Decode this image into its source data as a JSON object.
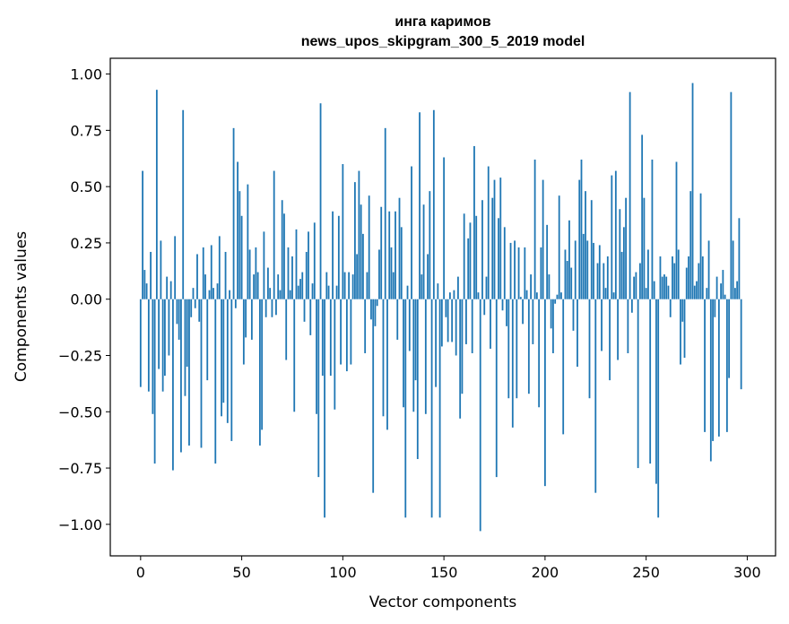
{
  "chart_data": {
    "type": "bar",
    "title": "инга каримов",
    "subtitle": "news_upos_skipgram_300_5_2019 model",
    "xlabel": "Vector components",
    "ylabel": "Components values",
    "xlim": [
      -15,
      314
    ],
    "ylim": [
      -1.14,
      1.07
    ],
    "xticks": [
      0,
      50,
      100,
      150,
      200,
      250,
      300
    ],
    "xtick_labels": [
      "0",
      "50",
      "100",
      "150",
      "200",
      "250",
      "300"
    ],
    "yticks": [
      1.0,
      0.75,
      0.5,
      0.25,
      0.0,
      -0.25,
      -0.5,
      -0.75,
      -1.0
    ],
    "ytick_labels": [
      "1.00",
      "0.75",
      "0.50",
      "0.25",
      "0.00",
      "−0.25",
      "−0.50",
      "−0.75",
      "−1.00"
    ],
    "grid": false,
    "bar_color": "#1f77b4",
    "values": [
      -0.39,
      0.57,
      0.13,
      0.07,
      -0.41,
      0.21,
      -0.51,
      -0.73,
      0.93,
      -0.31,
      0.26,
      -0.41,
      -0.34,
      0.1,
      -0.25,
      0.08,
      -0.76,
      0.28,
      -0.11,
      -0.18,
      -0.68,
      0.84,
      -0.43,
      -0.3,
      -0.65,
      -0.08,
      0.05,
      -0.04,
      0.2,
      -0.1,
      -0.66,
      0.23,
      0.11,
      -0.36,
      0.04,
      0.24,
      0.05,
      -0.73,
      0.07,
      0.28,
      -0.52,
      -0.46,
      0.21,
      -0.55,
      0.04,
      -0.63,
      0.76,
      -0.04,
      0.61,
      0.48,
      0.37,
      -0.29,
      -0.17,
      0.51,
      0.22,
      -0.18,
      0.11,
      0.23,
      0.12,
      -0.65,
      -0.58,
      0.3,
      -0.08,
      0.14,
      0.05,
      -0.08,
      0.57,
      -0.07,
      0.11,
      0.04,
      0.44,
      0.38,
      -0.27,
      0.23,
      0.04,
      0.19,
      -0.5,
      0.31,
      0.06,
      0.09,
      0.12,
      -0.1,
      0.21,
      0.3,
      -0.16,
      0.07,
      0.34,
      -0.51,
      -0.79,
      0.87,
      -0.34,
      -0.97,
      0.12,
      0.06,
      -0.34,
      0.39,
      -0.49,
      0.06,
      0.37,
      -0.29,
      0.6,
      0.12,
      -0.32,
      0.12,
      -0.29,
      0.11,
      0.52,
      0.2,
      0.57,
      0.42,
      0.29,
      -0.24,
      0.12,
      0.46,
      -0.09,
      -0.86,
      -0.12,
      -0.03,
      0.22,
      0.41,
      -0.52,
      0.76,
      -0.58,
      0.39,
      0.23,
      0.12,
      0.39,
      -0.18,
      0.45,
      0.32,
      -0.48,
      -0.97,
      0.06,
      -0.23,
      0.59,
      -0.5,
      -0.36,
      -0.71,
      0.83,
      0.11,
      0.42,
      -0.51,
      0.2,
      0.48,
      -0.97,
      0.84,
      -0.39,
      0.07,
      -0.97,
      -0.21,
      0.63,
      -0.08,
      -0.19,
      0.03,
      -0.19,
      0.04,
      -0.25,
      0.1,
      -0.53,
      -0.42,
      0.38,
      -0.2,
      0.27,
      0.34,
      -0.24,
      0.68,
      0.37,
      0.03,
      -1.03,
      0.44,
      -0.07,
      0.1,
      0.59,
      -0.22,
      0.45,
      0.53,
      -0.79,
      0.36,
      0.54,
      -0.05,
      0.32,
      -0.12,
      -0.44,
      0.25,
      -0.57,
      0.26,
      -0.44,
      0.23,
      0.01,
      -0.11,
      0.23,
      0.04,
      -0.42,
      0.11,
      -0.2,
      0.62,
      0.03,
      -0.48,
      0.23,
      0.53,
      -0.83,
      0.33,
      0.11,
      -0.13,
      -0.24,
      -0.02,
      0.02,
      0.46,
      0.03,
      -0.6,
      0.22,
      0.17,
      0.35,
      0.14,
      -0.14,
      0.26,
      -0.3,
      0.53,
      0.62,
      0.29,
      0.48,
      0.26,
      -0.44,
      0.44,
      0.25,
      -0.86,
      0.16,
      0.24,
      -0.23,
      0.16,
      0.05,
      0.19,
      -0.36,
      0.55,
      0.03,
      0.57,
      -0.27,
      0.4,
      0.21,
      0.32,
      0.45,
      -0.24,
      0.92,
      -0.06,
      0.1,
      0.12,
      -0.75,
      0.16,
      0.73,
      0.45,
      0.05,
      0.22,
      -0.73,
      0.62,
      0.08,
      -0.82,
      -0.97,
      0.19,
      0.1,
      0.11,
      0.1,
      0.06,
      -0.08,
      0.19,
      0.16,
      0.61,
      0.22,
      -0.29,
      -0.1,
      -0.26,
      0.14,
      0.19,
      0.48,
      0.96,
      0.06,
      0.08,
      0.16,
      0.47,
      0.19,
      -0.59,
      0.05,
      0.26,
      -0.72,
      -0.63,
      -0.08,
      0.1,
      -0.61,
      0.07,
      0.13,
      0.02,
      -0.59,
      -0.35,
      0.92,
      0.26,
      0.05,
      0.08,
      0.36,
      -0.4
    ]
  }
}
